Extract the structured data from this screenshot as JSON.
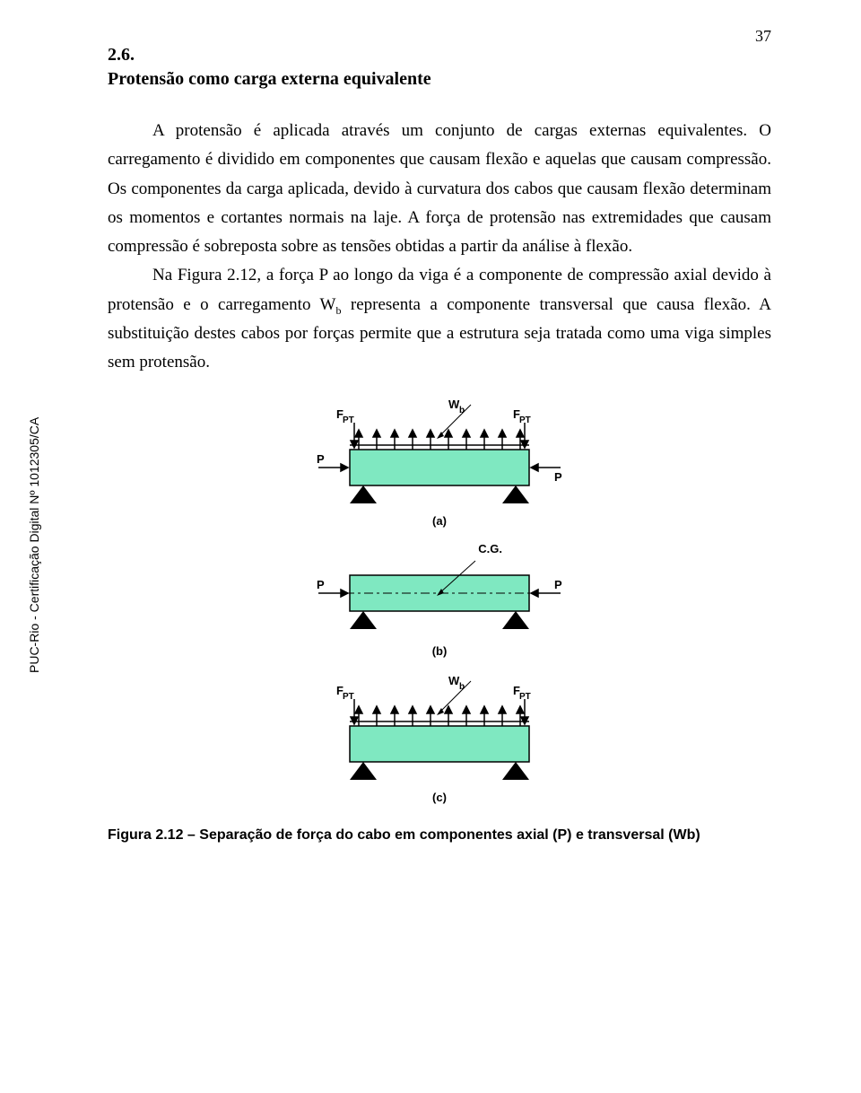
{
  "page_number": "37",
  "section_number": "2.6.",
  "section_title": "Protensão como carga externa equivalente",
  "paragraph1": "A protensão é aplicada através um conjunto de cargas externas equivalentes. O carregamento é dividido em componentes que causam flexão e aquelas que causam compressão. Os componentes da carga aplicada, devido à curvatura dos cabos que causam flexão determinam os momentos e cortantes normais na laje. A força de protensão nas extremidades que causam compressão é sobreposta sobre as tensões obtidas a partir da análise à flexão.",
  "paragraph2_html": "Na Figura 2.12, a força P ao longo da viga é a componente de compressão axial devido à protensão e o carregamento W<sub>b</sub> representa a componente transversal que causa flexão. A substituição destes cabos por forças permite que a estrutura seja tratada como uma viga simples sem protensão.",
  "sidebar": "PUC-Rio - Certificação Digital Nº 1012305/CA",
  "figure_caption": "Figura 2.12 – Separação de força do cabo em componentes axial (P) e transversal (Wb)",
  "figure": {
    "beam_fill": "#7FE8C1",
    "stroke": "#000000",
    "labels": {
      "F_PT": "F",
      "F_PT_sub": "PT",
      "P": "P",
      "Wb": "W",
      "Wb_sub": "b",
      "CG": "C.G.",
      "a": "(a)",
      "b": "(b)",
      "c": "(c)"
    }
  }
}
